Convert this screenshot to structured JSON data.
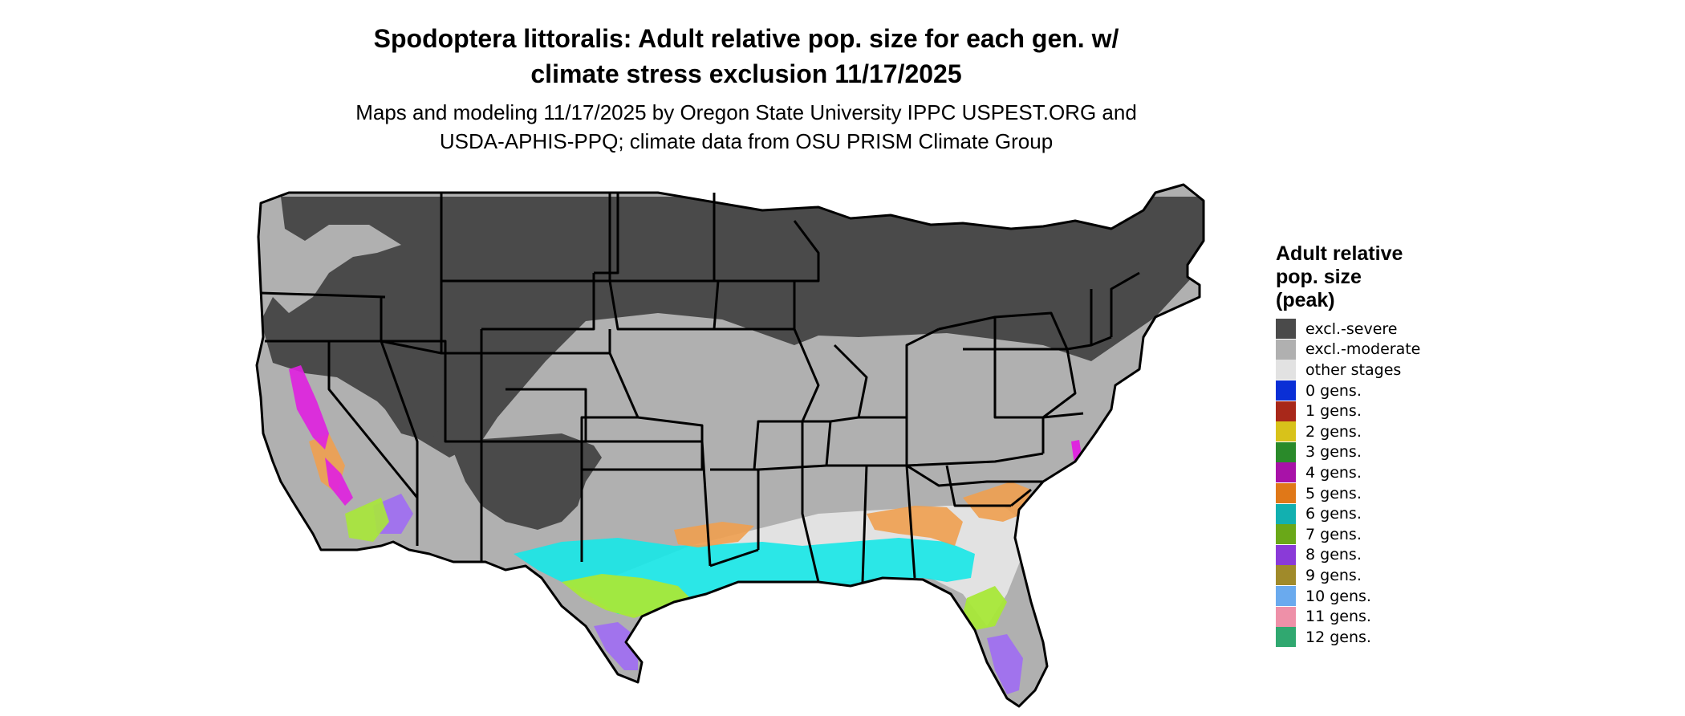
{
  "title_line1": "Spodoptera littoralis: Adult relative pop. size for each gen. w/",
  "title_line2": "climate stress exclusion 11/17/2025",
  "subtitle_line1": "Maps and modeling 11/17/2025 by Oregon State University IPPC USPEST.ORG and",
  "subtitle_line2": "USDA-APHIS-PPQ; climate data from OSU PRISM Climate Group",
  "legend": {
    "title_line1": "Adult relative",
    "title_line2": "pop. size",
    "title_line3": "(peak)",
    "items": [
      {
        "label": "excl.-severe",
        "color": "#4a4a4a"
      },
      {
        "label": "excl.-moderate",
        "color": "#b0b0b0"
      },
      {
        "label": "other stages",
        "color": "#e2e2e2"
      },
      {
        "label": "0 gens.",
        "color": "#0a2fd6"
      },
      {
        "label": "1 gens.",
        "color": "#a8281a"
      },
      {
        "label": "2 gens.",
        "color": "#d8c21a"
      },
      {
        "label": "3 gens.",
        "color": "#2a8a2a"
      },
      {
        "label": "4 gens.",
        "color": "#a812a8"
      },
      {
        "label": "5 gens.",
        "color": "#e07818"
      },
      {
        "label": "6 gens.",
        "color": "#12b0b0"
      },
      {
        "label": "7 gens.",
        "color": "#6aa818"
      },
      {
        "label": "8 gens.",
        "color": "#8a3ad8"
      },
      {
        "label": "9 gens.",
        "color": "#a08a2a"
      },
      {
        "label": "10 gens.",
        "color": "#6aaaee"
      },
      {
        "label": "11 gens.",
        "color": "#ee90a8"
      },
      {
        "label": "12 gens.",
        "color": "#30a870"
      }
    ]
  },
  "map_colors": {
    "severe": "#4a4a4a",
    "moderate": "#b0b0b0",
    "other": "#e2e2e2",
    "cyan": "#17e8e8",
    "orange": "#f0a050",
    "lime": "#a8e838",
    "purple": "#a070f0",
    "magenta": "#e020e0",
    "state_line": "#000000"
  }
}
